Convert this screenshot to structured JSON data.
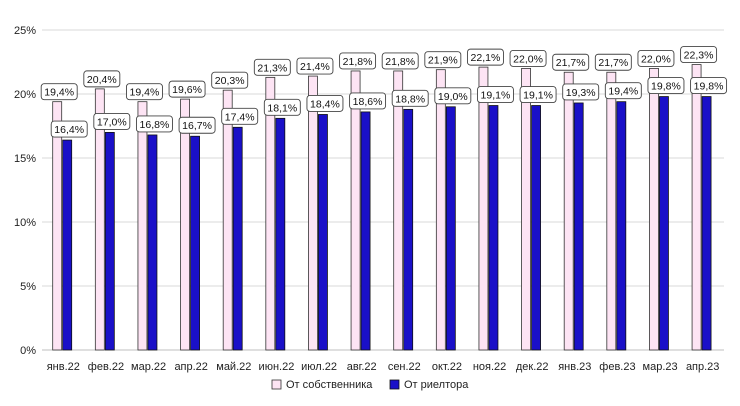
{
  "chart_data": {
    "type": "bar",
    "categories": [
      "янв.22",
      "фев.22",
      "мар.22",
      "апр.22",
      "май.22",
      "июн.22",
      "июл.22",
      "авг.22",
      "сен.22",
      "окт.22",
      "ноя.22",
      "дек.22",
      "янв.23",
      "фев.23",
      "мар.23",
      "апр.23"
    ],
    "series": [
      {
        "name": "От собственника",
        "color": "#fde4f4",
        "values": [
          19.4,
          20.4,
          19.4,
          19.6,
          20.3,
          21.3,
          21.4,
          21.8,
          21.8,
          21.9,
          22.1,
          22.0,
          21.7,
          21.7,
          22.0,
          22.3
        ],
        "labels": [
          "19,4%",
          "20,4%",
          "19,4%",
          "19,6%",
          "20,3%",
          "21,3%",
          "21,4%",
          "21,8%",
          "21,8%",
          "21,9%",
          "22,1%",
          "22,0%",
          "21,7%",
          "21,7%",
          "22,0%",
          "22,3%"
        ]
      },
      {
        "name": "От риелтора",
        "color": "#1a10c8",
        "values": [
          16.4,
          17.0,
          16.8,
          16.7,
          17.4,
          18.1,
          18.4,
          18.6,
          18.8,
          19.0,
          19.1,
          19.1,
          19.3,
          19.4,
          19.8,
          19.8
        ],
        "labels": [
          "16,4%",
          "17,0%",
          "16,8%",
          "16,7%",
          "17,4%",
          "18,1%",
          "18,4%",
          "18,6%",
          "18,8%",
          "19,0%",
          "19,1%",
          "19,1%",
          "19,3%",
          "19,4%",
          "19,8%",
          "19,8%"
        ]
      }
    ],
    "ylim": [
      0,
      25
    ],
    "yticks": [
      0,
      5,
      10,
      15,
      20,
      25
    ],
    "ytick_labels": [
      "0%",
      "5%",
      "10%",
      "15%",
      "20%",
      "25%"
    ],
    "grid": true,
    "legend_position": "bottom-center",
    "title": "",
    "xlabel": "",
    "ylabel": ""
  }
}
